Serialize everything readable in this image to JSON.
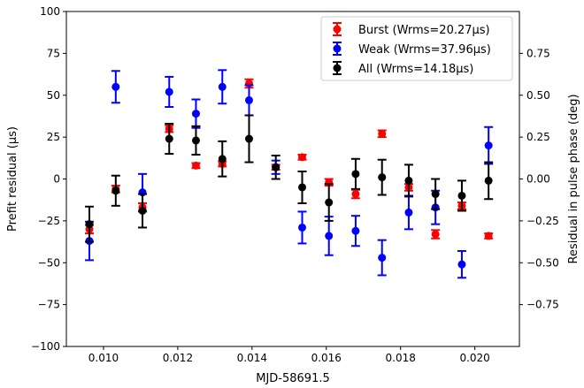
{
  "chart_data": {
    "type": "scatter",
    "xlabel": "MJD-58691.5",
    "ylabel": "Prefit residual (μs)",
    "ylabel_right": "Residual in pulse phase (deg)",
    "xlim": [
      0.009,
      0.0212
    ],
    "ylim": [
      -100,
      100
    ],
    "ylim_right": [
      -1.0,
      1.0
    ],
    "x_ticks": [
      0.01,
      0.012,
      0.014,
      0.016,
      0.018,
      0.02
    ],
    "x_tick_labels": [
      "0.010",
      "0.012",
      "0.014",
      "0.016",
      "0.018",
      "0.020"
    ],
    "y_ticks": [
      -100,
      -75,
      -50,
      -25,
      0,
      25,
      50,
      75,
      100
    ],
    "y_tick_labels": [
      "−100",
      "−75",
      "−50",
      "−25",
      "0",
      "25",
      "50",
      "75",
      "100"
    ],
    "y_right_ticks": [
      -0.75,
      -0.5,
      -0.25,
      0.0,
      0.25,
      0.5,
      0.75
    ],
    "y_right_tick_labels": [
      "−0.75",
      "−0.50",
      "−0.25",
      "0.00",
      "0.25",
      "0.50",
      "0.75"
    ],
    "grid": false,
    "legend_position": "top-right",
    "series": [
      {
        "name": "Burst (Wrms=20.27μs)",
        "color": "#ff0000",
        "x": [
          0.00962,
          0.01033,
          0.01105,
          0.01177,
          0.01249,
          0.0132,
          0.01392,
          0.01464,
          0.01535,
          0.01607,
          0.01679,
          0.0175,
          0.01822,
          0.01894,
          0.01965,
          0.02037
        ],
        "y": [
          -30,
          -6,
          -17,
          30,
          8,
          9,
          57,
          7,
          13,
          -2,
          -9,
          27,
          -5,
          -33,
          -16,
          -34
        ],
        "err": [
          2.5,
          2,
          2.5,
          2,
          1.5,
          1.5,
          2.5,
          1.5,
          1.5,
          2,
          2.5,
          2,
          2,
          2.5,
          2,
          1.5
        ]
      },
      {
        "name": "Weak (Wrms=37.96μs)",
        "color": "#0000ff",
        "x": [
          0.00962,
          0.01033,
          0.01105,
          0.01177,
          0.01249,
          0.0132,
          0.01392,
          0.01464,
          0.01535,
          0.01607,
          0.01679,
          0.0175,
          0.01822,
          0.01894,
          0.01965,
          0.02037
        ],
        "y": [
          -37,
          55,
          -8,
          52,
          39,
          55,
          47,
          7,
          -29,
          -34,
          -31,
          -47,
          -20,
          -17,
          -51,
          20
        ],
        "err": [
          11.5,
          9.5,
          11,
          9,
          8.5,
          10,
          9,
          4,
          9.5,
          11.5,
          9,
          10.5,
          10,
          10,
          8,
          11
        ]
      },
      {
        "name": "All (Wrms=14.18μs)",
        "color": "#000000",
        "x": [
          0.00962,
          0.01033,
          0.01105,
          0.01177,
          0.01249,
          0.0132,
          0.01392,
          0.01464,
          0.01535,
          0.01607,
          0.01679,
          0.0175,
          0.01822,
          0.01894,
          0.01965,
          0.02037
        ],
        "y": [
          -27,
          -7,
          -19,
          24,
          23,
          12,
          24,
          7,
          -5,
          -14,
          3,
          1,
          -1,
          -9,
          -10,
          -1
        ],
        "err": [
          10.5,
          9,
          10,
          9,
          8.5,
          10.5,
          14,
          7,
          9.5,
          11,
          9,
          10.5,
          9.5,
          9,
          9,
          11
        ]
      }
    ]
  }
}
